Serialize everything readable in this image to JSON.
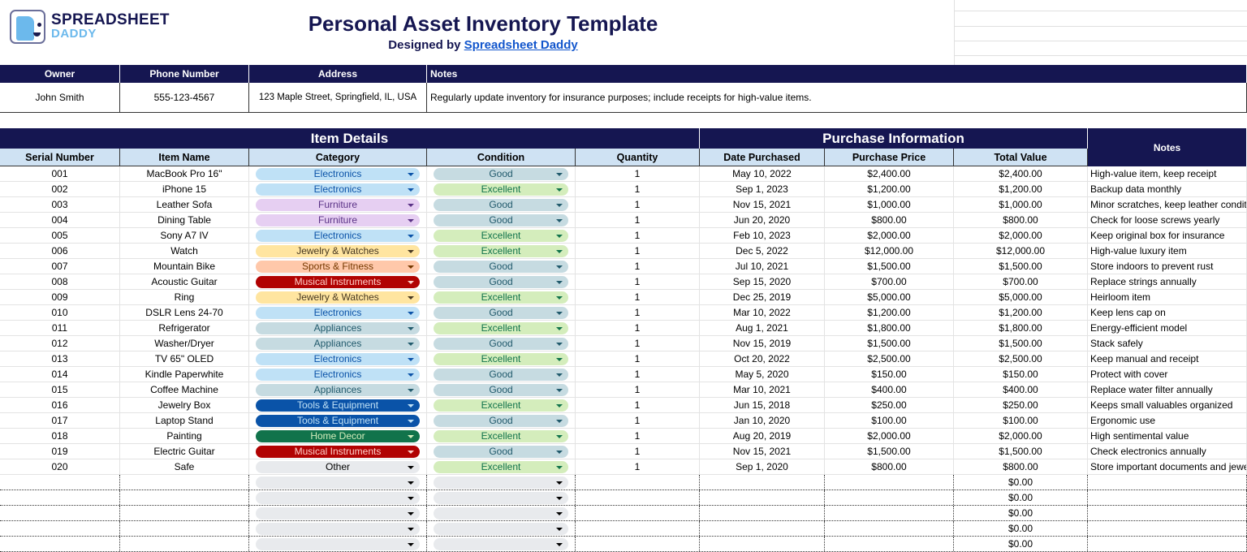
{
  "brand": {
    "line1": "SPREADSHEET",
    "line2": "DADDY"
  },
  "title": "Personal Asset Inventory Template",
  "subtitle": {
    "prefix": "Designed by ",
    "link": "Spreadsheet Daddy"
  },
  "owner_info": {
    "headers": [
      "Owner",
      "Phone Number",
      "Address",
      "Notes"
    ],
    "values": [
      "John Smith",
      "555-123-4567",
      "123 Maple Street, Springfield, IL, USA",
      "Regularly update inventory for insurance purposes; include receipts for high-value items."
    ]
  },
  "groups": {
    "item_details": "Item Details",
    "purchase_info": "Purchase Information",
    "notes": "Notes"
  },
  "columns": [
    "Serial Number",
    "Item Name",
    "Category",
    "Condition",
    "Quantity",
    "Date Purchased",
    "Purchase Price",
    "Total Value"
  ],
  "colors": {
    "header": "#151651",
    "subheader": "#cfe2f3",
    "link": "#1155cc"
  },
  "category_styles": {
    "Electronics": {
      "bg": "#bfe1f6",
      "fg": "#0b53a8"
    },
    "Furniture": {
      "bg": "#e6cff2",
      "fg": "#5a3286"
    },
    "Jewelry & Watches": {
      "bg": "#ffe5a0",
      "fg": "#473821"
    },
    "Sports & Fitness": {
      "bg": "#ffc8aa",
      "fg": "#753800"
    },
    "Musical Instruments": {
      "bg": "#b10202",
      "fg": "#ffcfc9"
    },
    "Appliances": {
      "bg": "#c6dbe1",
      "fg": "#215a6c"
    },
    "Tools & Equipment": {
      "bg": "#0a53a8",
      "fg": "#bfe1f6"
    },
    "Home Decor": {
      "bg": "#11734b",
      "fg": "#d4edbc"
    },
    "Other": {
      "bg": "#e8eaed",
      "fg": "#000000"
    },
    "Good": {
      "bg": "#c6dbe1",
      "fg": "#215a6c"
    },
    "Excellent": {
      "bg": "#d4edbc",
      "fg": "#11734b"
    },
    "": {
      "bg": "#e8eaed",
      "fg": "#000000"
    }
  },
  "rows": [
    [
      "001",
      "MacBook Pro 16\"",
      "Electronics",
      "Good",
      "1",
      "May 10, 2022",
      "$2,400.00",
      "$2,400.00",
      "High-value item, keep receipt"
    ],
    [
      "002",
      "iPhone 15",
      "Electronics",
      "Excellent",
      "1",
      "Sep 1, 2023",
      "$1,200.00",
      "$1,200.00",
      "Backup data monthly"
    ],
    [
      "003",
      "Leather Sofa",
      "Furniture",
      "Good",
      "1",
      "Nov 15, 2021",
      "$1,000.00",
      "$1,000.00",
      "Minor scratches, keep leather condit"
    ],
    [
      "004",
      "Dining Table",
      "Furniture",
      "Good",
      "1",
      "Jun 20, 2020",
      "$800.00",
      "$800.00",
      "Check for loose screws yearly"
    ],
    [
      "005",
      "Sony A7 IV",
      "Electronics",
      "Excellent",
      "1",
      "Feb 10, 2023",
      "$2,000.00",
      "$2,000.00",
      "Keep original box for insurance"
    ],
    [
      "006",
      "Watch",
      "Jewelry & Watches",
      "Excellent",
      "1",
      "Dec 5, 2022",
      "$12,000.00",
      "$12,000.00",
      "High-value luxury item"
    ],
    [
      "007",
      "Mountain Bike",
      "Sports & Fitness",
      "Good",
      "1",
      "Jul 10, 2021",
      "$1,500.00",
      "$1,500.00",
      "Store indoors to prevent rust"
    ],
    [
      "008",
      "Acoustic Guitar",
      "Musical Instruments",
      "Good",
      "1",
      "Sep 15, 2020",
      "$700.00",
      "$700.00",
      "Replace strings annually"
    ],
    [
      "009",
      "Ring",
      "Jewelry & Watches",
      "Excellent",
      "1",
      "Dec 25, 2019",
      "$5,000.00",
      "$5,000.00",
      "Heirloom item"
    ],
    [
      "010",
      "DSLR Lens 24-70",
      "Electronics",
      "Good",
      "1",
      "Mar 10, 2022",
      "$1,200.00",
      "$1,200.00",
      "Keep lens cap on"
    ],
    [
      "011",
      "Refrigerator",
      "Appliances",
      "Excellent",
      "1",
      "Aug 1, 2021",
      "$1,800.00",
      "$1,800.00",
      "Energy-efficient model"
    ],
    [
      "012",
      "Washer/Dryer",
      "Appliances",
      "Good",
      "1",
      "Nov 15, 2019",
      "$1,500.00",
      "$1,500.00",
      "Stack safely"
    ],
    [
      "013",
      "TV 65\" OLED",
      "Electronics",
      "Excellent",
      "1",
      "Oct 20, 2022",
      "$2,500.00",
      "$2,500.00",
      "Keep manual and receipt"
    ],
    [
      "014",
      "Kindle Paperwhite",
      "Electronics",
      "Good",
      "1",
      "May 5, 2020",
      "$150.00",
      "$150.00",
      "Protect with cover"
    ],
    [
      "015",
      "Coffee Machine",
      "Appliances",
      "Good",
      "1",
      "Mar 10, 2021",
      "$400.00",
      "$400.00",
      "Replace water filter annually"
    ],
    [
      "016",
      "Jewelry Box",
      "Tools & Equipment",
      "Excellent",
      "1",
      "Jun 15, 2018",
      "$250.00",
      "$250.00",
      "Keeps small valuables organized"
    ],
    [
      "017",
      "Laptop Stand",
      "Tools & Equipment",
      "Good",
      "1",
      "Jan 10, 2020",
      "$100.00",
      "$100.00",
      "Ergonomic use"
    ],
    [
      "018",
      "Painting",
      "Home Decor",
      "Excellent",
      "1",
      "Aug 20, 2019",
      "$2,000.00",
      "$2,000.00",
      "High sentimental value"
    ],
    [
      "019",
      "Electric Guitar",
      "Musical Instruments",
      "Good",
      "1",
      "Nov 15, 2021",
      "$1,500.00",
      "$1,500.00",
      "Check electronics annually"
    ],
    [
      "020",
      "Safe",
      "Other",
      "Excellent",
      "1",
      "Sep 1, 2020",
      "$800.00",
      "$800.00",
      "Store important documents and jewe"
    ],
    [
      "",
      "",
      "",
      "",
      "",
      "",
      "",
      "$0.00",
      ""
    ],
    [
      "",
      "",
      "",
      "",
      "",
      "",
      "",
      "$0.00",
      ""
    ],
    [
      "",
      "",
      "",
      "",
      "",
      "",
      "",
      "$0.00",
      ""
    ],
    [
      "",
      "",
      "",
      "",
      "",
      "",
      "",
      "$0.00",
      ""
    ],
    [
      "",
      "",
      "",
      "",
      "",
      "",
      "",
      "$0.00",
      ""
    ]
  ]
}
